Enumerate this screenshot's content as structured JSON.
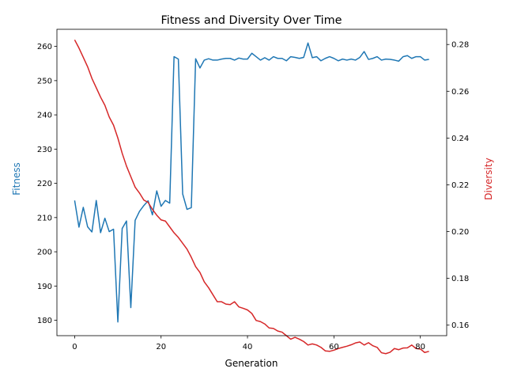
{
  "chart_data": {
    "type": "line",
    "title": "Fitness and Diversity Over Time",
    "xlabel": "Generation",
    "xlim": [
      -4.1,
      86.1
    ],
    "xticks": [
      0,
      20,
      40,
      60,
      80
    ],
    "grid": false,
    "legend": "none",
    "axes": {
      "left": {
        "label": "Fitness",
        "color": "#1f77b4",
        "ylim": [
          175.5,
          265.0
        ],
        "ticks": [
          180,
          190,
          200,
          210,
          220,
          230,
          240,
          250,
          260
        ]
      },
      "right": {
        "label": "Diversity",
        "color": "#d62728",
        "ylim": [
          0.1555,
          0.2865
        ],
        "ticks": [
          0.16,
          0.18,
          0.2,
          0.22,
          0.24,
          0.26,
          0.28
        ],
        "tick_labels": [
          "0.16",
          "0.18",
          "0.20",
          "0.22",
          "0.24",
          "0.26",
          "0.28"
        ]
      }
    },
    "series": [
      {
        "axis": "left",
        "color": "#1f77b4",
        "x": [
          0,
          1,
          2,
          3,
          4,
          5,
          6,
          7,
          8,
          9,
          10,
          11,
          12,
          13,
          14,
          15,
          16,
          17,
          18,
          19,
          20,
          21,
          22,
          23,
          24,
          25,
          26,
          27,
          28,
          29,
          30,
          31,
          32,
          33,
          34,
          35,
          36,
          37,
          38,
          39,
          40,
          41,
          42,
          43,
          44,
          45,
          46,
          47,
          48,
          49,
          50,
          51,
          52,
          53,
          54,
          55,
          56,
          57,
          58,
          59,
          60,
          61,
          62,
          63,
          64,
          65,
          66,
          67,
          68,
          69,
          70,
          71,
          72,
          73,
          74,
          75,
          76,
          77,
          78,
          79,
          80,
          81,
          82
        ],
        "values": [
          215.0,
          207.2,
          213.0,
          207.3,
          205.8,
          215.0,
          205.6,
          209.8,
          205.9,
          206.6,
          179.5,
          206.8,
          209.0,
          183.7,
          209.2,
          211.8,
          213.5,
          214.9,
          210.8,
          217.8,
          213.3,
          215.0,
          214.2,
          257.0,
          256.3,
          216.9,
          212.4,
          212.9,
          256.4,
          253.7,
          256.0,
          256.4,
          256.0,
          256.0,
          256.3,
          256.5,
          256.5,
          256.0,
          256.6,
          256.3,
          256.3,
          258.0,
          257.0,
          256.0,
          256.7,
          256.0,
          257.0,
          256.5,
          256.5,
          255.8,
          257.0,
          256.8,
          256.5,
          256.8,
          261.0,
          256.7,
          257.0,
          255.8,
          256.5,
          257.0,
          256.5,
          255.8,
          256.3,
          256.0,
          256.3,
          256.0,
          256.8,
          258.5,
          256.2,
          256.5,
          257.0,
          256.0,
          256.3,
          256.2,
          256.0,
          255.7,
          257.0,
          257.3,
          256.5,
          257.0,
          257.0,
          256.0,
          256.2
        ]
      },
      {
        "axis": "right",
        "color": "#d62728",
        "x": [
          0,
          1,
          2,
          3,
          4,
          5,
          6,
          7,
          8,
          9,
          10,
          11,
          12,
          13,
          14,
          15,
          16,
          17,
          18,
          19,
          20,
          21,
          22,
          23,
          24,
          25,
          26,
          27,
          28,
          29,
          30,
          31,
          32,
          33,
          34,
          35,
          36,
          37,
          38,
          39,
          40,
          41,
          42,
          43,
          44,
          45,
          46,
          47,
          48,
          49,
          50,
          51,
          52,
          53,
          54,
          55,
          56,
          57,
          58,
          59,
          60,
          61,
          62,
          63,
          64,
          65,
          66,
          67,
          68,
          69,
          70,
          71,
          72,
          73,
          74,
          75,
          76,
          77,
          78,
          79,
          80,
          81,
          82
        ],
        "values": [
          0.282,
          0.2785,
          0.2745,
          0.2705,
          0.2655,
          0.2615,
          0.2575,
          0.254,
          0.249,
          0.2455,
          0.24,
          0.2335,
          0.228,
          0.2235,
          0.219,
          0.2165,
          0.2135,
          0.2125,
          0.2095,
          0.207,
          0.205,
          0.2045,
          0.202,
          0.1995,
          0.1975,
          0.195,
          0.1925,
          0.189,
          0.185,
          0.1825,
          0.1785,
          0.176,
          0.173,
          0.17,
          0.17,
          0.169,
          0.1688,
          0.17,
          0.1678,
          0.1672,
          0.1665,
          0.165,
          0.162,
          0.1615,
          0.1605,
          0.1588,
          0.1586,
          0.1575,
          0.157,
          0.1555,
          0.154,
          0.1548,
          0.154,
          0.153,
          0.1515,
          0.152,
          0.1515,
          0.1505,
          0.149,
          0.1488,
          0.1493,
          0.15,
          0.1505,
          0.151,
          0.1516,
          0.1524,
          0.1528,
          0.1515,
          0.1525,
          0.1512,
          0.1505,
          0.1482,
          0.1478,
          0.1484,
          0.15,
          0.1495,
          0.1502,
          0.1503,
          0.1515,
          0.15,
          0.1498,
          0.1483,
          0.1488
        ]
      }
    ]
  }
}
